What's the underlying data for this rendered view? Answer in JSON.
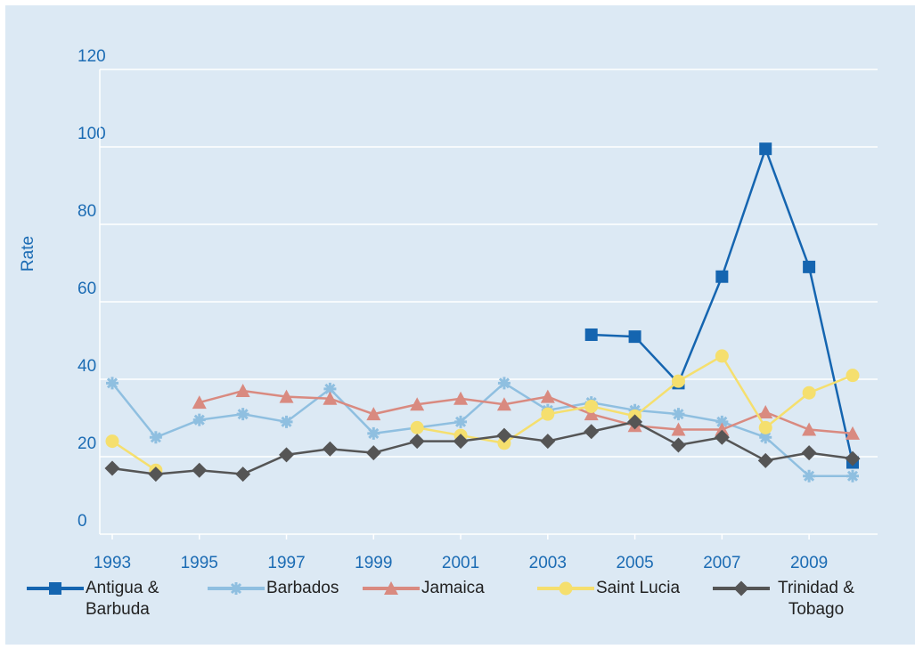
{
  "chart_data": {
    "type": "line",
    "ylabel": "Rate",
    "x": [
      1993,
      1994,
      1995,
      1996,
      1997,
      1998,
      1999,
      2000,
      2001,
      2002,
      2003,
      2004,
      2005,
      2006,
      2007,
      2008,
      2009,
      2010
    ],
    "xlim": [
      1993,
      2010
    ],
    "xticks": [
      1993,
      1995,
      1997,
      1999,
      2001,
      2003,
      2005,
      2007,
      2009
    ],
    "ylim": [
      0,
      120
    ],
    "yticks": [
      0,
      20,
      40,
      60,
      80,
      100,
      120
    ],
    "grid": true,
    "legend": "bottom",
    "series": [
      {
        "name": "Antigua & Barbuda",
        "color": "#1565b0",
        "marker": "square",
        "values": [
          null,
          null,
          null,
          null,
          null,
          null,
          null,
          null,
          null,
          null,
          null,
          51.5,
          51,
          39,
          66.5,
          99.5,
          69,
          18.5
        ]
      },
      {
        "name": "Barbados",
        "color": "#8fbfe0",
        "marker": "asterisk",
        "values": [
          39,
          25,
          29.5,
          31,
          29,
          37.5,
          26,
          27.5,
          29,
          39,
          32,
          34,
          32,
          31,
          29,
          25,
          15,
          15
        ]
      },
      {
        "name": "Jamaica",
        "color": "#d98a80",
        "marker": "triangle",
        "values": [
          null,
          null,
          34,
          37,
          35.5,
          35,
          31,
          33.5,
          35,
          33.5,
          35.5,
          31,
          28,
          27,
          27,
          31.5,
          27,
          26
        ]
      },
      {
        "name": "Saint Lucia",
        "color": "#f5df6e",
        "marker": "circle",
        "values": [
          24,
          16.5,
          null,
          null,
          null,
          null,
          null,
          27.5,
          25.5,
          23.5,
          31,
          33,
          30.5,
          39.5,
          46,
          27.5,
          36.5,
          41
        ]
      },
      {
        "name": "Trinidad & Tobago",
        "color": "#555555",
        "marker": "diamond",
        "values": [
          17,
          15.5,
          16.5,
          15.5,
          20.5,
          22,
          21,
          24,
          24,
          25.5,
          24,
          26.5,
          29,
          23,
          25,
          19,
          21,
          19.5
        ]
      }
    ]
  }
}
